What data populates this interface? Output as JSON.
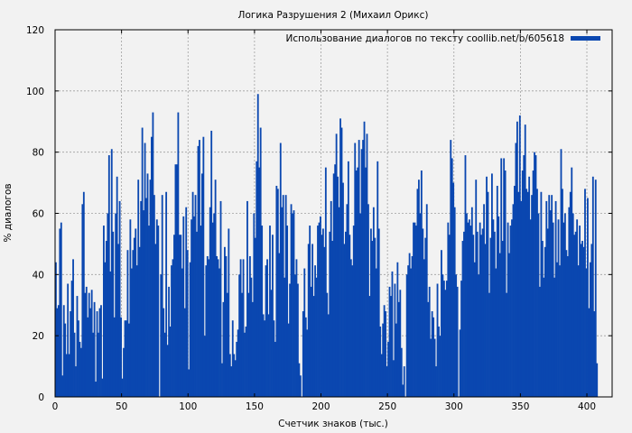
{
  "chart_data": {
    "type": "bar",
    "title": "Логика Разрушения 2 (Михаил Орикс)",
    "xlabel": "Счетчик знаков (тыс.)",
    "ylabel": "% диалогов",
    "xlim": [
      0,
      419
    ],
    "ylim": [
      0,
      120
    ],
    "x_ticks": [
      0,
      50,
      100,
      150,
      200,
      250,
      300,
      350,
      400
    ],
    "y_ticks": [
      0,
      20,
      40,
      60,
      80,
      100,
      120
    ],
    "grid": true,
    "legend_position": "top-right",
    "series": [
      {
        "name": "Использование диалогов по тексту coollib.net/b/605618",
        "color": "#0a47b0",
        "bin_width": 1,
        "x_start": 0,
        "values": [
          44,
          29,
          30,
          55,
          57,
          7,
          30,
          24,
          14,
          37,
          14,
          28,
          38,
          45,
          21,
          10,
          33,
          25,
          18,
          16,
          63,
          67,
          34,
          36,
          26,
          34,
          29,
          35,
          21,
          31,
          5,
          28,
          21,
          29,
          30,
          6,
          56,
          44,
          51,
          60,
          79,
          41,
          81,
          54,
          26,
          60,
          72,
          50,
          64,
          26,
          6,
          16,
          25,
          25,
          48,
          24,
          58,
          42,
          48,
          52,
          55,
          43,
          71,
          49,
          64,
          88,
          61,
          83,
          65,
          73,
          56,
          71,
          85,
          93,
          66,
          50,
          58,
          56,
          0,
          40,
          66,
          29,
          21,
          67,
          17,
          36,
          23,
          43,
          45,
          53,
          76,
          76,
          93,
          53,
          53,
          42,
          59,
          29,
          62,
          48,
          9,
          44,
          58,
          67,
          59,
          66,
          54,
          82,
          84,
          56,
          73,
          85,
          20,
          43,
          46,
          45,
          62,
          87,
          57,
          60,
          71,
          46,
          45,
          42,
          64,
          11,
          31,
          49,
          46,
          34,
          55,
          14,
          10,
          25,
          14,
          12,
          18,
          22,
          40,
          45,
          34,
          45,
          21,
          23,
          64,
          34,
          46,
          39,
          31,
          60,
          52,
          77,
          99,
          75,
          88,
          56,
          27,
          25,
          43,
          45,
          27,
          56,
          35,
          53,
          25,
          18,
          69,
          68,
          47,
          83,
          62,
          66,
          39,
          66,
          56,
          24,
          37,
          63,
          60,
          61,
          40,
          45,
          37,
          11,
          7,
          0,
          28,
          42,
          26,
          22,
          50,
          56,
          36,
          50,
          33,
          43,
          39,
          56,
          57,
          59,
          53,
          55,
          49,
          75,
          34,
          27,
          54,
          64,
          51,
          73,
          76,
          86,
          72,
          62,
          91,
          88,
          70,
          50,
          54,
          63,
          77,
          53,
          45,
          43,
          56,
          83,
          74,
          75,
          84,
          60,
          81,
          84,
          90,
          75,
          86,
          63,
          33,
          55,
          51,
          62,
          52,
          42,
          77,
          55,
          23,
          14,
          24,
          30,
          28,
          10,
          18,
          36,
          33,
          41,
          12,
          37,
          24,
          44,
          31,
          35,
          16,
          4,
          10,
          0,
          40,
          43,
          47,
          42,
          46,
          57,
          57,
          56,
          68,
          71,
          60,
          74,
          55,
          45,
          52,
          63,
          31,
          36,
          19,
          28,
          26,
          19,
          10,
          37,
          23,
          20,
          48,
          40,
          38,
          35,
          38,
          57,
          53,
          84,
          78,
          70,
          62,
          40,
          36,
          0,
          22,
          38,
          51,
          54,
          79,
          60,
          57,
          58,
          56,
          62,
          53,
          44,
          71,
          54,
          40,
          57,
          53,
          55,
          63,
          50,
          72,
          67,
          34,
          52,
          73,
          58,
          54,
          42,
          69,
          59,
          47,
          78,
          51,
          78,
          74,
          34,
          57,
          47,
          56,
          58,
          63,
          69,
          83,
          90,
          67,
          92,
          64,
          74,
          79,
          89,
          68,
          67,
          72,
          58,
          66,
          74,
          80,
          79,
          68,
          60,
          36,
          67,
          51,
          39,
          49,
          64,
          55,
          66,
          61,
          66,
          57,
          39,
          64,
          44,
          58,
          43,
          81,
          68,
          57,
          60,
          48,
          46,
          62,
          67,
          75,
          60,
          53,
          54,
          58,
          43,
          56,
          50,
          51,
          49,
          68,
          42,
          65,
          29,
          44,
          50,
          72,
          28,
          71,
          11
        ]
      }
    ]
  }
}
